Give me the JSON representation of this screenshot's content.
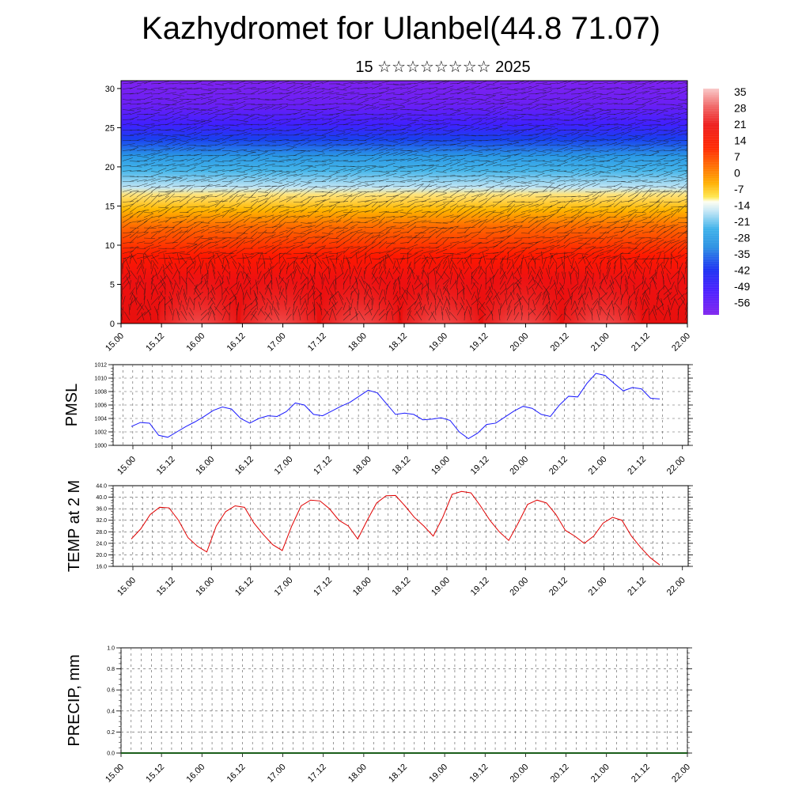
{
  "header": {
    "title": "Kazhydromet for Ulanbel(44.8 71.07)",
    "subtitle": "15 ☆☆☆☆☆☆☆☆ 2025"
  },
  "colors": {
    "pmsl_line": "#1a1aff",
    "temp_line": "#e00000",
    "precip_line": "#1a5e1a",
    "grid": "#555555"
  },
  "chart_data": [
    {
      "type": "heatmap",
      "name": "cross-section",
      "ylim": [
        0,
        31
      ],
      "yticks": [
        "0",
        "5",
        "10",
        "15",
        "20",
        "25",
        "30"
      ],
      "ytick_values": [
        0,
        5,
        10,
        15,
        20,
        25,
        30
      ],
      "xticks": [
        "15.00",
        "15.12",
        "16.00",
        "16.12",
        "17.00",
        "17.12",
        "18.00",
        "18.12",
        "19.00",
        "19.12",
        "20.00",
        "20.12",
        "21.00",
        "21.12",
        "22.00"
      ],
      "colorbar": {
        "labels": [
          "35",
          "28",
          "21",
          "14",
          "7",
          "0",
          "-7",
          "-14",
          "-21",
          "-28",
          "-35",
          "-42",
          "-49",
          "-56"
        ],
        "colors": [
          "#f9c8c8",
          "#f45050",
          "#ee1b1b",
          "#ff2a00",
          "#ff5a00",
          "#ff9400",
          "#ffd000",
          "#ffff88",
          "#bfe3f5",
          "#3fb0ea",
          "#2fa4e0",
          "#1a5fe8",
          "#3a1cff",
          "#7a1df0"
        ]
      }
    },
    {
      "type": "line",
      "name": "PMSL",
      "ylabel": "PMSL",
      "ylim": [
        1000,
        1012
      ],
      "ytick_labels": [
        "1000",
        "1002",
        "1004",
        "1006",
        "1008",
        "1010",
        "1012"
      ],
      "ytick_values": [
        1000,
        1002,
        1004,
        1006,
        1008,
        1010,
        1012
      ],
      "xticks": [
        "15.00",
        "15.12",
        "16.00",
        "16.12",
        "17.00",
        "17.12",
        "18.00",
        "18.12",
        "19.00",
        "19.12",
        "20.00",
        "20.12",
        "21.00",
        "21.12",
        "22.00"
      ],
      "values": [
        1002.8,
        1003.4,
        1003.3,
        1001.5,
        1001.2,
        1002.0,
        1002.8,
        1003.5,
        1004.3,
        1005.2,
        1005.7,
        1005.4,
        1004.0,
        1003.3,
        1004.0,
        1004.4,
        1004.3,
        1005.0,
        1006.3,
        1006.0,
        1004.6,
        1004.4,
        1005.1,
        1005.8,
        1006.4,
        1007.3,
        1008.2,
        1007.8,
        1006.2,
        1004.6,
        1004.8,
        1004.6,
        1003.8,
        1003.9,
        1004.1,
        1003.7,
        1002.0,
        1001.0,
        1001.8,
        1003.1,
        1003.3,
        1004.2,
        1005.1,
        1005.8,
        1005.5,
        1004.6,
        1004.3,
        1006.0,
        1007.3,
        1007.2,
        1009.2,
        1010.7,
        1010.4,
        1009.2,
        1008.1,
        1008.6,
        1008.4,
        1007.0,
        1006.9
      ]
    },
    {
      "type": "line",
      "name": "TEMP at 2 M",
      "ylabel": "TEMP at 2 M",
      "ylim": [
        16,
        44
      ],
      "ytick_labels": [
        "16.0",
        "20.0",
        "24.0",
        "28.0",
        "32.0",
        "36.0",
        "40.0",
        "44.0"
      ],
      "ytick_values": [
        16,
        20,
        24,
        28,
        32,
        36,
        40,
        44
      ],
      "xticks": [
        "15.00",
        "15.12",
        "16.00",
        "16.12",
        "17.00",
        "17.12",
        "18.00",
        "18.12",
        "19.00",
        "19.12",
        "20.00",
        "20.12",
        "21.00",
        "21.12",
        "22.00"
      ],
      "values": [
        25.5,
        29,
        34,
        36.5,
        36.3,
        32,
        26,
        23,
        21,
        30,
        35,
        37,
        36.5,
        31,
        27,
        23.5,
        21.5,
        30,
        37,
        39,
        38.7,
        36,
        32,
        30,
        25.5,
        32,
        38,
        40.5,
        40.6,
        37,
        33,
        30,
        26.5,
        33,
        41,
        42,
        41.5,
        37,
        32,
        28,
        25,
        31,
        37.5,
        39,
        38,
        34,
        28.5,
        26.5,
        24,
        26.5,
        31,
        33,
        32,
        26.5,
        22.5,
        19,
        16.5
      ]
    },
    {
      "type": "line",
      "name": "PRECIP, mm",
      "ylabel": "PRECIP, mm",
      "ylim": [
        0,
        1
      ],
      "ytick_labels": [
        "0.0",
        "0.2",
        "0.4",
        "0.6",
        "0.8",
        "1.0"
      ],
      "ytick_values": [
        0,
        0.2,
        0.4,
        0.6,
        0.8,
        1.0
      ],
      "xticks": [
        "15.00",
        "15.12",
        "16.00",
        "16.12",
        "17.00",
        "17.12",
        "18.00",
        "18.12",
        "19.00",
        "19.12",
        "20.00",
        "20.12",
        "21.00",
        "21.12",
        "22.00"
      ],
      "values": [
        0,
        0,
        0,
        0,
        0,
        0,
        0,
        0,
        0,
        0,
        0,
        0,
        0,
        0,
        0,
        0,
        0,
        0,
        0,
        0,
        0,
        0,
        0,
        0,
        0,
        0,
        0,
        0,
        0,
        0,
        0,
        0,
        0,
        0,
        0,
        0,
        0,
        0,
        0,
        0,
        0,
        0,
        0,
        0,
        0,
        0,
        0,
        0,
        0,
        0,
        0,
        0,
        0,
        0,
        0,
        0,
        0
      ]
    }
  ]
}
